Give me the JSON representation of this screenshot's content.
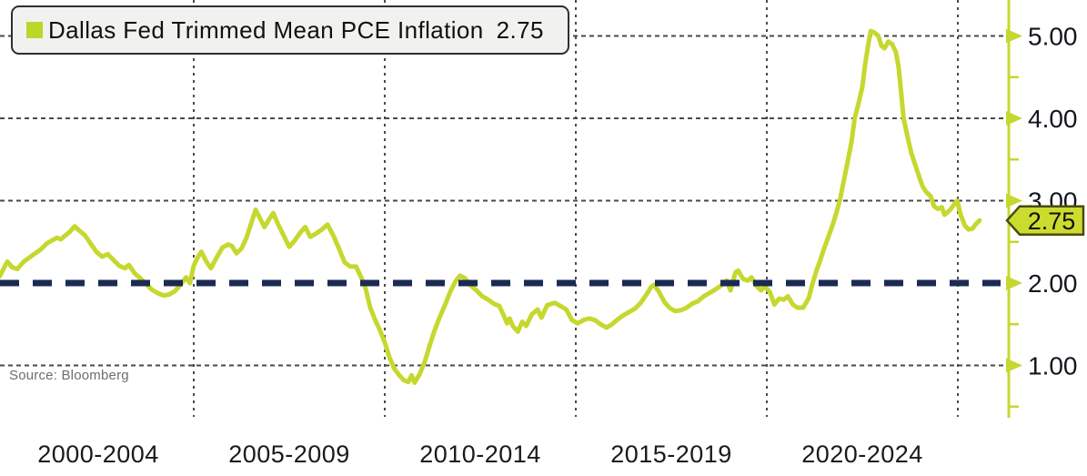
{
  "legend": {
    "label": "Dallas Fed Trimmed Mean PCE Inflation",
    "value": "2.75",
    "swatch_color": "#bcd62a"
  },
  "source_note": "Source: Bloomberg",
  "colors": {
    "accent": "#c6d82f",
    "tag_fill": "#ccdc2e",
    "tag_stroke": "#4a4a12",
    "navy": "#1b2a52",
    "grid": "#4a4a4a",
    "axis_text": "#14161f",
    "xlabel_text": "#1a1a1a"
  },
  "y_axis": {
    "major_ticks": [
      {
        "label": "5.00",
        "value": 5
      },
      {
        "label": "4.00",
        "value": 4
      },
      {
        "label": "3.00",
        "value": 3
      },
      {
        "label": "2.00",
        "value": 2
      },
      {
        "label": "1.00",
        "value": 1
      }
    ],
    "minor_tick_values": [
      4.5,
      3.5,
      2.5,
      1.5,
      0.5
    ],
    "current_value_tag": {
      "label": "2.75"
    }
  },
  "x_axis": {
    "labels": [
      {
        "label": "2000-2004",
        "center_year": 2002.5
      },
      {
        "label": "2005-2009",
        "center_year": 2007.5
      },
      {
        "label": "2010-2014",
        "center_year": 2012.5
      },
      {
        "label": "2015-2019",
        "center_year": 2017.5
      },
      {
        "label": "2020-2024",
        "center_year": 2022.5
      }
    ],
    "boundary_years": [
      2005,
      2010,
      2015,
      2020,
      2025
    ]
  },
  "chart_data": {
    "type": "line",
    "title": "Dallas Fed Trimmed Mean PCE Inflation",
    "legend_entries": [
      "Dallas Fed Trimmed Mean PCE Inflation"
    ],
    "current_value": 2.75,
    "ylim": [
      0.3,
      5.45
    ],
    "xlim": [
      1999.85,
      2026.33
    ],
    "yticks": [
      1,
      2,
      3,
      4,
      5
    ],
    "horizontal_gridline_values": [
      5,
      4,
      3,
      1
    ],
    "reference_line": {
      "value": 2.0,
      "style": "dashed",
      "color": "#1b2a52"
    },
    "grid": "dotted",
    "legend_position": "top-left",
    "series": [
      {
        "name": "Dallas Fed Trimmed Mean PCE Inflation",
        "points": [
          [
            1999.92,
            2.08
          ],
          [
            2000.05,
            2.2
          ],
          [
            2000.12,
            2.26
          ],
          [
            2000.25,
            2.19
          ],
          [
            2000.38,
            2.17
          ],
          [
            2000.55,
            2.26
          ],
          [
            2000.7,
            2.31
          ],
          [
            2000.85,
            2.36
          ],
          [
            2001.0,
            2.41
          ],
          [
            2001.15,
            2.48
          ],
          [
            2001.3,
            2.52
          ],
          [
            2001.42,
            2.55
          ],
          [
            2001.52,
            2.53
          ],
          [
            2001.62,
            2.57
          ],
          [
            2001.75,
            2.62
          ],
          [
            2001.88,
            2.69
          ],
          [
            2002.0,
            2.64
          ],
          [
            2002.15,
            2.58
          ],
          [
            2002.3,
            2.48
          ],
          [
            2002.45,
            2.38
          ],
          [
            2002.6,
            2.32
          ],
          [
            2002.75,
            2.35
          ],
          [
            2002.9,
            2.28
          ],
          [
            2003.05,
            2.21
          ],
          [
            2003.2,
            2.18
          ],
          [
            2003.3,
            2.22
          ],
          [
            2003.45,
            2.12
          ],
          [
            2003.6,
            2.06
          ],
          [
            2003.75,
            1.99
          ],
          [
            2003.9,
            1.92
          ],
          [
            2004.05,
            1.88
          ],
          [
            2004.2,
            1.85
          ],
          [
            2004.35,
            1.86
          ],
          [
            2004.5,
            1.9
          ],
          [
            2004.62,
            1.96
          ],
          [
            2004.72,
            2.02
          ],
          [
            2004.8,
            2.07
          ],
          [
            2004.9,
            2.0
          ],
          [
            2005.0,
            2.21
          ],
          [
            2005.1,
            2.31
          ],
          [
            2005.2,
            2.38
          ],
          [
            2005.33,
            2.26
          ],
          [
            2005.45,
            2.18
          ],
          [
            2005.6,
            2.31
          ],
          [
            2005.75,
            2.43
          ],
          [
            2005.9,
            2.47
          ],
          [
            2006.0,
            2.45
          ],
          [
            2006.12,
            2.36
          ],
          [
            2006.25,
            2.42
          ],
          [
            2006.38,
            2.55
          ],
          [
            2006.5,
            2.72
          ],
          [
            2006.62,
            2.89
          ],
          [
            2006.72,
            2.8
          ],
          [
            2006.85,
            2.68
          ],
          [
            2006.97,
            2.77
          ],
          [
            2007.08,
            2.85
          ],
          [
            2007.2,
            2.72
          ],
          [
            2007.35,
            2.58
          ],
          [
            2007.5,
            2.44
          ],
          [
            2007.65,
            2.52
          ],
          [
            2007.8,
            2.62
          ],
          [
            2007.92,
            2.68
          ],
          [
            2008.05,
            2.56
          ],
          [
            2008.2,
            2.6
          ],
          [
            2008.35,
            2.65
          ],
          [
            2008.5,
            2.71
          ],
          [
            2008.65,
            2.58
          ],
          [
            2008.8,
            2.42
          ],
          [
            2008.95,
            2.25
          ],
          [
            2009.1,
            2.2
          ],
          [
            2009.25,
            2.2
          ],
          [
            2009.4,
            2.05
          ],
          [
            2009.5,
            1.93
          ],
          [
            2009.62,
            1.7
          ],
          [
            2009.75,
            1.55
          ],
          [
            2009.88,
            1.42
          ],
          [
            2010.0,
            1.28
          ],
          [
            2010.12,
            1.1
          ],
          [
            2010.25,
            0.96
          ],
          [
            2010.38,
            0.88
          ],
          [
            2010.5,
            0.82
          ],
          [
            2010.62,
            0.8
          ],
          [
            2010.7,
            0.88
          ],
          [
            2010.78,
            0.79
          ],
          [
            2010.92,
            0.9
          ],
          [
            2011.05,
            1.05
          ],
          [
            2011.18,
            1.25
          ],
          [
            2011.3,
            1.42
          ],
          [
            2011.45,
            1.6
          ],
          [
            2011.6,
            1.76
          ],
          [
            2011.72,
            1.9
          ],
          [
            2011.85,
            2.02
          ],
          [
            2011.97,
            2.09
          ],
          [
            2012.1,
            2.06
          ],
          [
            2012.25,
            1.97
          ],
          [
            2012.4,
            1.91
          ],
          [
            2012.55,
            1.84
          ],
          [
            2012.7,
            1.8
          ],
          [
            2012.85,
            1.75
          ],
          [
            2013.0,
            1.72
          ],
          [
            2013.1,
            1.62
          ],
          [
            2013.2,
            1.51
          ],
          [
            2013.27,
            1.57
          ],
          [
            2013.35,
            1.48
          ],
          [
            2013.48,
            1.41
          ],
          [
            2013.6,
            1.53
          ],
          [
            2013.7,
            1.48
          ],
          [
            2013.85,
            1.62
          ],
          [
            2014.0,
            1.68
          ],
          [
            2014.1,
            1.58
          ],
          [
            2014.25,
            1.73
          ],
          [
            2014.45,
            1.76
          ],
          [
            2014.6,
            1.72
          ],
          [
            2014.75,
            1.68
          ],
          [
            2014.9,
            1.55
          ],
          [
            2015.05,
            1.51
          ],
          [
            2015.2,
            1.55
          ],
          [
            2015.35,
            1.57
          ],
          [
            2015.5,
            1.55
          ],
          [
            2015.65,
            1.5
          ],
          [
            2015.8,
            1.46
          ],
          [
            2015.95,
            1.5
          ],
          [
            2016.1,
            1.56
          ],
          [
            2016.25,
            1.61
          ],
          [
            2016.4,
            1.65
          ],
          [
            2016.55,
            1.69
          ],
          [
            2016.7,
            1.76
          ],
          [
            2016.85,
            1.86
          ],
          [
            2016.97,
            1.95
          ],
          [
            2017.05,
            1.98
          ],
          [
            2017.18,
            1.89
          ],
          [
            2017.32,
            1.77
          ],
          [
            2017.45,
            1.7
          ],
          [
            2017.6,
            1.66
          ],
          [
            2017.75,
            1.67
          ],
          [
            2017.9,
            1.7
          ],
          [
            2018.05,
            1.75
          ],
          [
            2018.2,
            1.78
          ],
          [
            2018.35,
            1.84
          ],
          [
            2018.5,
            1.88
          ],
          [
            2018.65,
            1.92
          ],
          [
            2018.8,
            1.97
          ],
          [
            2018.95,
            2.03
          ],
          [
            2019.05,
            1.91
          ],
          [
            2019.18,
            2.13
          ],
          [
            2019.25,
            2.15
          ],
          [
            2019.38,
            2.05
          ],
          [
            2019.5,
            2.03
          ],
          [
            2019.6,
            2.07
          ],
          [
            2019.72,
            1.97
          ],
          [
            2019.85,
            1.91
          ],
          [
            2019.95,
            1.96
          ],
          [
            2020.08,
            1.89
          ],
          [
            2020.2,
            1.74
          ],
          [
            2020.32,
            1.81
          ],
          [
            2020.45,
            1.8
          ],
          [
            2020.55,
            1.84
          ],
          [
            2020.68,
            1.74
          ],
          [
            2020.8,
            1.7
          ],
          [
            2020.95,
            1.7
          ],
          [
            2021.1,
            1.82
          ],
          [
            2021.2,
            2.0
          ],
          [
            2021.3,
            2.15
          ],
          [
            2021.4,
            2.28
          ],
          [
            2021.5,
            2.42
          ],
          [
            2021.62,
            2.57
          ],
          [
            2021.72,
            2.7
          ],
          [
            2021.82,
            2.85
          ],
          [
            2021.92,
            3.02
          ],
          [
            2022.02,
            3.25
          ],
          [
            2022.12,
            3.48
          ],
          [
            2022.22,
            3.72
          ],
          [
            2022.3,
            4.0
          ],
          [
            2022.4,
            4.18
          ],
          [
            2022.5,
            4.38
          ],
          [
            2022.58,
            4.68
          ],
          [
            2022.65,
            4.88
          ],
          [
            2022.72,
            5.06
          ],
          [
            2022.82,
            5.04
          ],
          [
            2022.92,
            5.0
          ],
          [
            2023.0,
            4.88
          ],
          [
            2023.08,
            4.85
          ],
          [
            2023.18,
            4.93
          ],
          [
            2023.28,
            4.9
          ],
          [
            2023.38,
            4.8
          ],
          [
            2023.45,
            4.62
          ],
          [
            2023.52,
            4.3
          ],
          [
            2023.58,
            4.0
          ],
          [
            2023.68,
            3.78
          ],
          [
            2023.78,
            3.58
          ],
          [
            2023.88,
            3.44
          ],
          [
            2023.98,
            3.3
          ],
          [
            2024.08,
            3.17
          ],
          [
            2024.18,
            3.1
          ],
          [
            2024.28,
            3.06
          ],
          [
            2024.38,
            2.93
          ],
          [
            2024.48,
            2.9
          ],
          [
            2024.58,
            2.92
          ],
          [
            2024.65,
            2.83
          ],
          [
            2024.78,
            2.88
          ],
          [
            2024.88,
            2.94
          ],
          [
            2024.98,
            3.0
          ],
          [
            2025.08,
            2.82
          ],
          [
            2025.18,
            2.7
          ],
          [
            2025.28,
            2.65
          ],
          [
            2025.38,
            2.66
          ],
          [
            2025.48,
            2.72
          ],
          [
            2025.57,
            2.76
          ]
        ]
      }
    ]
  }
}
